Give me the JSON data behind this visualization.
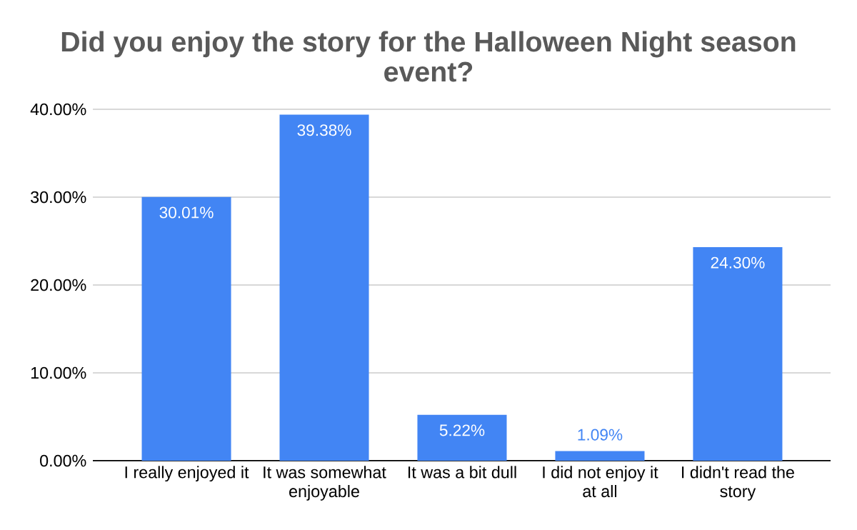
{
  "chart_data": {
    "type": "bar",
    "title": "Did you enjoy the story for the Halloween Night season event?",
    "categories": [
      "I really enjoyed it",
      "It was somewhat enjoyable",
      "It was a bit dull",
      "I did not enjoy it at all",
      "I didn't read the story"
    ],
    "values": [
      30.01,
      39.38,
      5.22,
      1.09,
      24.3
    ],
    "value_labels": [
      "30.01%",
      "39.38%",
      "5.22%",
      "1.09%",
      "24.30%"
    ],
    "color": "#4285f4",
    "ylim": [
      0,
      40
    ],
    "yticks": [
      {
        "value": 0,
        "label": "0.00%"
      },
      {
        "value": 10,
        "label": "10.00%"
      },
      {
        "value": 20,
        "label": "20.00%"
      },
      {
        "value": 30,
        "label": "30.00%"
      },
      {
        "value": 40,
        "label": "40.00%"
      }
    ],
    "grid": "y"
  }
}
